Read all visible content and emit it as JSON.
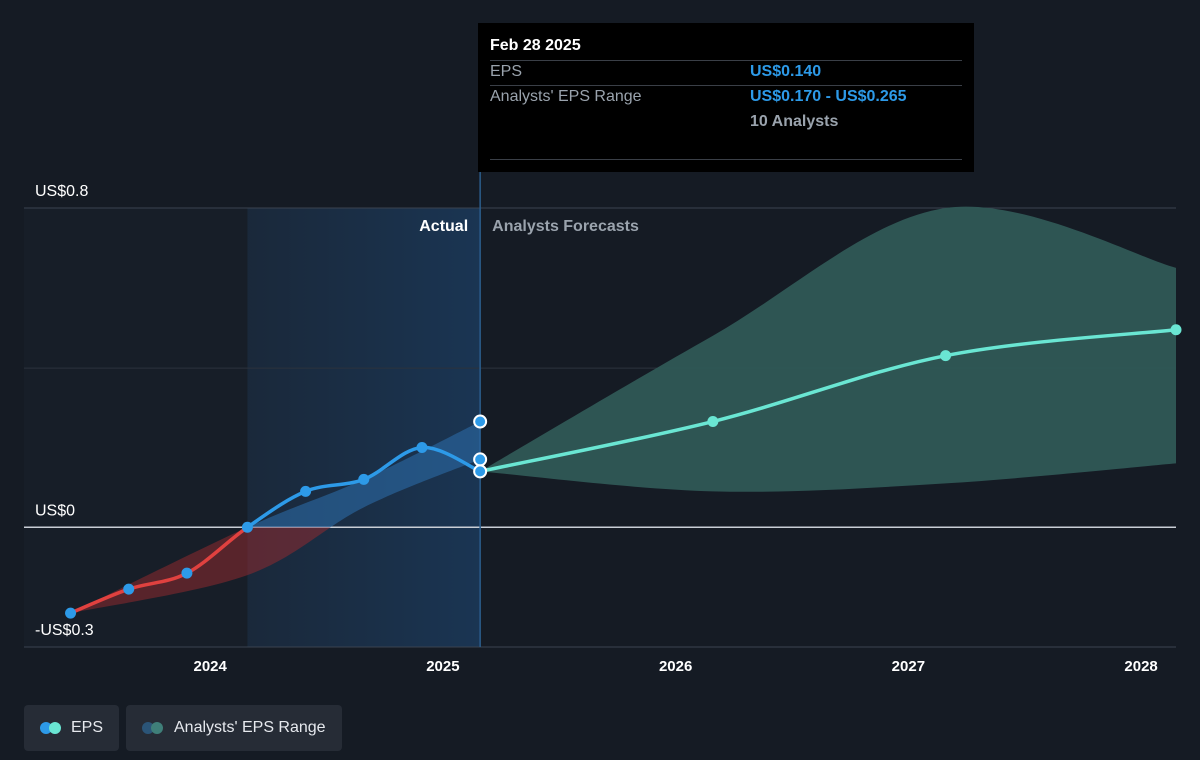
{
  "tooltip": {
    "date": "Feb 28 2025",
    "eps_label": "EPS",
    "eps_value": "US$0.140",
    "range_label": "Analysts' EPS Range",
    "range_value": "US$0.170 - US$0.265",
    "analysts": "10 Analysts"
  },
  "legend": {
    "eps_label": "EPS",
    "range_label": "Analysts' EPS Range"
  },
  "colors": {
    "negative": "#e0413f",
    "actual": "#2d9ae8",
    "forecast": "#6ae6d3",
    "forecast_band": "#2f5856"
  },
  "chart_data": {
    "type": "line",
    "section_labels": {
      "actual": "Actual",
      "forecast": "Analysts Forecasts"
    },
    "y_ticks": [
      {
        "value": 0.8,
        "label": "US$0.8"
      },
      {
        "value": 0,
        "label": "US$0"
      },
      {
        "value": -0.3,
        "label": "-US$0.3"
      }
    ],
    "ylim": [
      -0.3,
      0.8
    ],
    "xlim": [
      2023.2,
      2028.15
    ],
    "x_ticks": [
      {
        "value": 2024.0,
        "label": "2024"
      },
      {
        "value": 2025.0,
        "label": "2025"
      },
      {
        "value": 2026.0,
        "label": "2026"
      },
      {
        "value": 2027.0,
        "label": "2027"
      },
      {
        "value": 2028.0,
        "label": "2028"
      }
    ],
    "highlight_start": 2024.16,
    "divider_x": 2025.16,
    "actual_eps": [
      {
        "x": 2023.4,
        "y": -0.215
      },
      {
        "x": 2023.65,
        "y": -0.155
      },
      {
        "x": 2023.9,
        "y": -0.115
      },
      {
        "x": 2024.16,
        "y": 0.0
      },
      {
        "x": 2024.41,
        "y": 0.09
      },
      {
        "x": 2024.66,
        "y": 0.12
      },
      {
        "x": 2024.91,
        "y": 0.2
      },
      {
        "x": 2025.16,
        "y": 0.14
      }
    ],
    "actual_range": [
      {
        "x": 2023.4,
        "lo": -0.215,
        "hi": -0.215
      },
      {
        "x": 2024.16,
        "lo": -0.12,
        "hi": 0.0
      },
      {
        "x": 2024.66,
        "lo": 0.05,
        "hi": 0.12
      },
      {
        "x": 2025.16,
        "lo": 0.17,
        "hi": 0.265
      }
    ],
    "range_markers": [
      0.265,
      0.17
    ],
    "forecast_eps": [
      {
        "x": 2025.16,
        "y": 0.14
      },
      {
        "x": 2026.16,
        "y": 0.265
      },
      {
        "x": 2027.16,
        "y": 0.43
      },
      {
        "x": 2028.15,
        "y": 0.495
      }
    ],
    "forecast_range": [
      {
        "x": 2025.16,
        "lo": 0.14,
        "hi": 0.14
      },
      {
        "x": 2026.16,
        "lo": 0.09,
        "hi": 0.48
      },
      {
        "x": 2027.16,
        "lo": 0.11,
        "hi": 0.8
      },
      {
        "x": 2028.15,
        "lo": 0.16,
        "hi": 0.65
      }
    ]
  }
}
